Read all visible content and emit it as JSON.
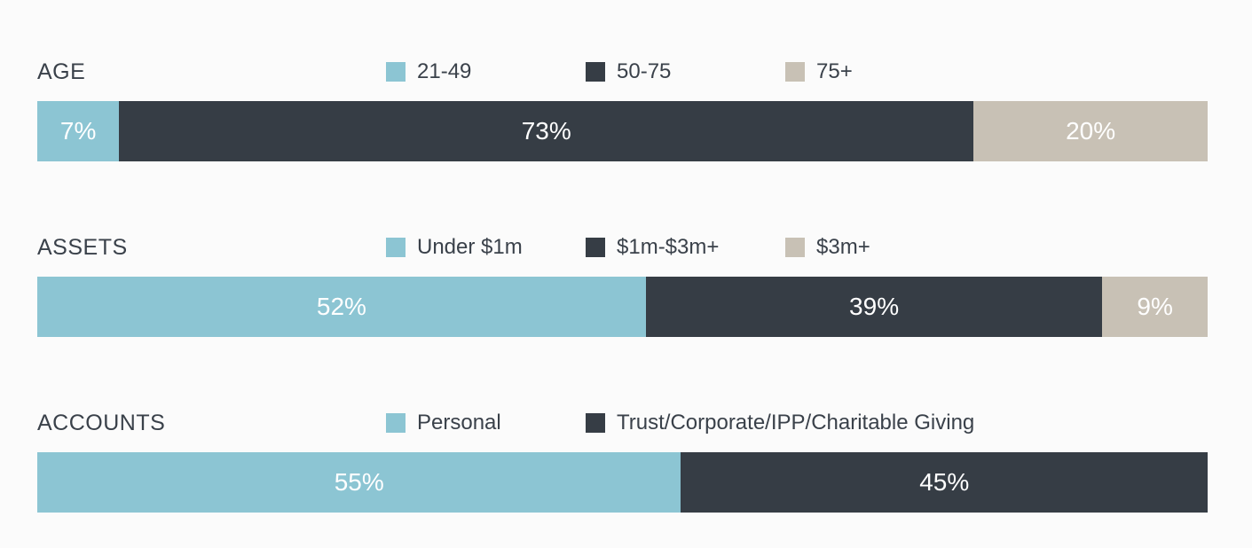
{
  "page": {
    "background_color": "#fbfbfb",
    "label_text_color": "#3a414a",
    "bar_value_text_color": "#ffffff"
  },
  "palette": {
    "light_blue": "#8cc5d3",
    "dark_slate": "#363d45",
    "beige": "#c8c1b5"
  },
  "chart_data": [
    {
      "type": "bar",
      "orientation": "horizontal",
      "stacked": true,
      "legend_position": "top",
      "xlim": [
        0,
        100
      ],
      "category": "AGE",
      "segments": [
        {
          "name": "21-49",
          "value": 7,
          "value_label": "7%",
          "color": "#8cc5d3"
        },
        {
          "name": "50-75",
          "value": 73,
          "value_label": "73%",
          "color": "#363d45"
        },
        {
          "name": "75+",
          "value": 20,
          "value_label": "20%",
          "color": "#c8c1b5"
        }
      ]
    },
    {
      "type": "bar",
      "orientation": "horizontal",
      "stacked": true,
      "legend_position": "top",
      "xlim": [
        0,
        100
      ],
      "category": "ASSETS",
      "segments": [
        {
          "name": "Under $1m",
          "value": 52,
          "value_label": "52%",
          "color": "#8cc5d3"
        },
        {
          "name": "$1m-$3m+",
          "value": 39,
          "value_label": "39%",
          "color": "#363d45"
        },
        {
          "name": "$3m+",
          "value": 9,
          "value_label": "9%",
          "color": "#c8c1b5"
        }
      ]
    },
    {
      "type": "bar",
      "orientation": "horizontal",
      "stacked": true,
      "legend_position": "top",
      "xlim": [
        0,
        100
      ],
      "category": "ACCOUNTS",
      "segments": [
        {
          "name": "Personal",
          "value": 55,
          "value_label": "55%",
          "color": "#8cc5d3"
        },
        {
          "name": "Trust/Corporate/IPP/Charitable Giving",
          "value": 45,
          "value_label": "45%",
          "color": "#363d45"
        }
      ]
    }
  ]
}
